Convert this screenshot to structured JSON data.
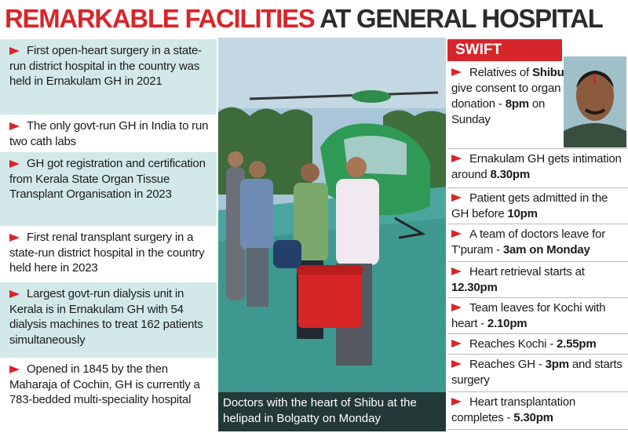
{
  "header": {
    "title_red": "REMARKABLE FACILITIES",
    "title_dark": "AT GENERAL HOSPITAL"
  },
  "facilities": [
    "First open-heart surgery in a state-run district hospital in the country was held in Ernakulam GH in 2021",
    "The only govt-run GH in India to run two cath labs",
    "GH got registration and certification from Kerala State Organ Tissue Transplant Organisation in 2023",
    "First renal transplant surgery in a state-run district hospital in the country held here in 2023",
    "Largest govt-run dialysis unit in Kerala is in Ernakulam GH with 54 dialysis machines to treat 162 patients simultaneously",
    "Opened in 1845 by the then Maharaja of Cochin, GH is currently a 783-bedded multi-speciality hospital"
  ],
  "photo": {
    "caption": "Doctors with the heart of Shibu at the helipad in Bolgatty on Monday"
  },
  "swift_action": {
    "title": "SWIFT ACTION",
    "items": [
      {
        "parts": [
          {
            "text": "Relatives of "
          },
          {
            "text": "Shibu",
            "bold": true
          },
          {
            "text": " give consent to organ donation - "
          },
          {
            "text": "8pm",
            "bold": true
          },
          {
            "text": " on Sunday"
          }
        ]
      },
      {
        "parts": [
          {
            "text": "Ernakulam GH gets intimation around "
          },
          {
            "text": "8.30pm",
            "bold": true
          }
        ]
      },
      {
        "parts": [
          {
            "text": "Patient gets admitted in the GH before "
          },
          {
            "text": "10pm",
            "bold": true
          }
        ]
      },
      {
        "parts": [
          {
            "text": "A team of doctors leave for T'puram - "
          },
          {
            "text": "3am on Monday",
            "bold": true
          }
        ]
      },
      {
        "parts": [
          {
            "text": "Heart retrieval starts at "
          },
          {
            "text": "12.30pm",
            "bold": true
          }
        ]
      },
      {
        "parts": [
          {
            "text": "Team leaves for Kochi with heart - "
          },
          {
            "text": "2.10pm",
            "bold": true
          }
        ]
      },
      {
        "parts": [
          {
            "text": "Reaches Kochi - "
          },
          {
            "text": "2.55pm",
            "bold": true
          }
        ]
      },
      {
        "parts": [
          {
            "text": "Reaches GH - "
          },
          {
            "text": "3pm",
            "bold": true
          },
          {
            "text": " and starts surgery"
          }
        ]
      },
      {
        "parts": [
          {
            "text": "Heart transplantation completes - "
          },
          {
            "text": "5.30pm",
            "bold": true
          }
        ]
      }
    ]
  }
}
